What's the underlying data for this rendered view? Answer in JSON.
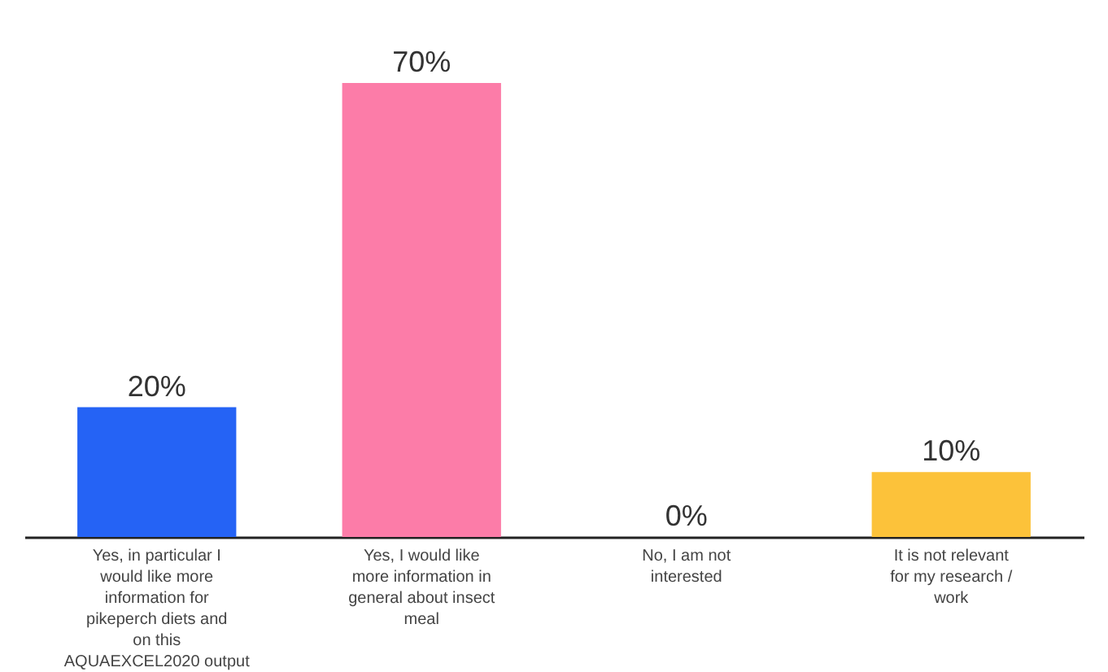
{
  "chart_data": {
    "type": "bar",
    "categories": [
      "Yes, in particular I would like more information for pikeperch diets and on this AQUAEXCEL2020 output",
      "Yes, I would like more information in general about insect meal",
      "No, I am not interested",
      "It is not relevant for my research / work"
    ],
    "values": [
      20,
      70,
      0,
      10
    ],
    "value_labels": [
      "20%",
      "70%",
      "0%",
      "10%"
    ],
    "colors": [
      "#2563f5",
      "#fc7ca8",
      "#fc7ca8",
      "#fcc23a"
    ],
    "grid": false
  }
}
